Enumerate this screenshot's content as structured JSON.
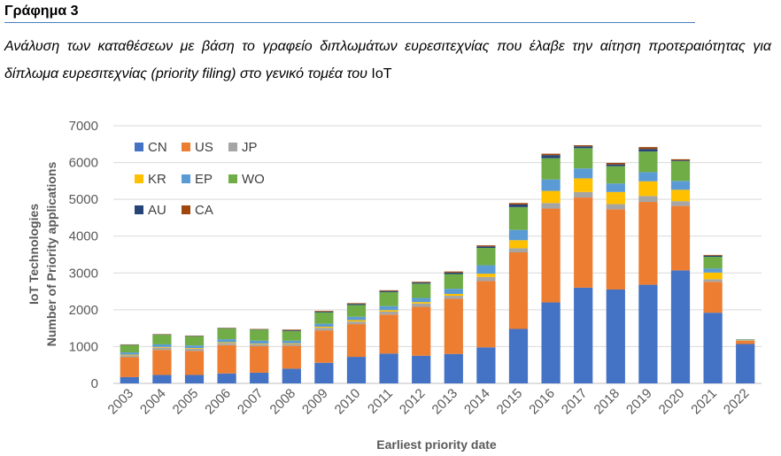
{
  "heading": "Γράφημα 3",
  "caption": {
    "main": "Ανάλυση των καταθέσεων με βάση το γραφείο διπλωμάτων ευρεσιτεχνίας που έλαβε την αίτηση προτεραιότητας για δίπλωμα ευρεσιτεχνίας (priority filing) στο γενικό τομέα του",
    "tail": "IoT"
  },
  "chart_data": {
    "type": "bar",
    "stacked": true,
    "title": "",
    "xlabel": "Earliest priority date",
    "ylabel": [
      "IoT Technologies",
      "Number of Priority applications"
    ],
    "ylim": [
      0,
      7000
    ],
    "yticks": [
      0,
      1000,
      2000,
      3000,
      4000,
      5000,
      6000,
      7000
    ],
    "grid": true,
    "legend_position": "top-left",
    "categories": [
      "2003",
      "2004",
      "2005",
      "2006",
      "2007",
      "2008",
      "2009",
      "2010",
      "2011",
      "2012",
      "2013",
      "2014",
      "2015",
      "2016",
      "2017",
      "2018",
      "2019",
      "2020",
      "2021",
      "2022"
    ],
    "series": [
      {
        "name": "CN",
        "color": "#4472c4",
        "values": [
          170,
          230,
          230,
          270,
          290,
          400,
          560,
          720,
          810,
          750,
          800,
          980,
          1480,
          2200,
          2600,
          2550,
          2680,
          3070,
          1920,
          1070
        ]
      },
      {
        "name": "US",
        "color": "#ed7d31",
        "values": [
          540,
          680,
          650,
          770,
          720,
          620,
          880,
          890,
          1060,
          1330,
          1500,
          1800,
          2080,
          2550,
          2450,
          2180,
          2250,
          1750,
          840,
          90
        ]
      },
      {
        "name": "JP",
        "color": "#a5a5a5",
        "values": [
          50,
          60,
          60,
          60,
          50,
          50,
          70,
          70,
          80,
          90,
          80,
          110,
          110,
          150,
          150,
          140,
          160,
          130,
          70,
          15
        ]
      },
      {
        "name": "KR",
        "color": "#ffc000",
        "values": [
          20,
          20,
          20,
          20,
          20,
          20,
          30,
          40,
          40,
          40,
          50,
          90,
          220,
          330,
          370,
          330,
          400,
          310,
          180,
          5
        ]
      },
      {
        "name": "EP",
        "color": "#5b9bd5",
        "values": [
          60,
          70,
          70,
          80,
          80,
          70,
          80,
          90,
          110,
          110,
          140,
          230,
          280,
          310,
          270,
          230,
          250,
          240,
          110,
          5
        ]
      },
      {
        "name": "WO",
        "color": "#70ad47",
        "values": [
          200,
          260,
          250,
          290,
          300,
          260,
          310,
          320,
          380,
          390,
          400,
          470,
          620,
          580,
          550,
          470,
          560,
          540,
          320,
          10
        ]
      },
      {
        "name": "AU",
        "color": "#264478",
        "values": [
          10,
          10,
          10,
          10,
          10,
          20,
          20,
          30,
          30,
          30,
          40,
          40,
          70,
          80,
          50,
          50,
          70,
          20,
          30,
          5
        ]
      },
      {
        "name": "CA",
        "color": "#9e480e",
        "values": [
          10,
          10,
          10,
          10,
          10,
          20,
          20,
          20,
          20,
          20,
          30,
          30,
          40,
          40,
          30,
          40,
          50,
          30,
          20,
          0
        ]
      }
    ]
  }
}
